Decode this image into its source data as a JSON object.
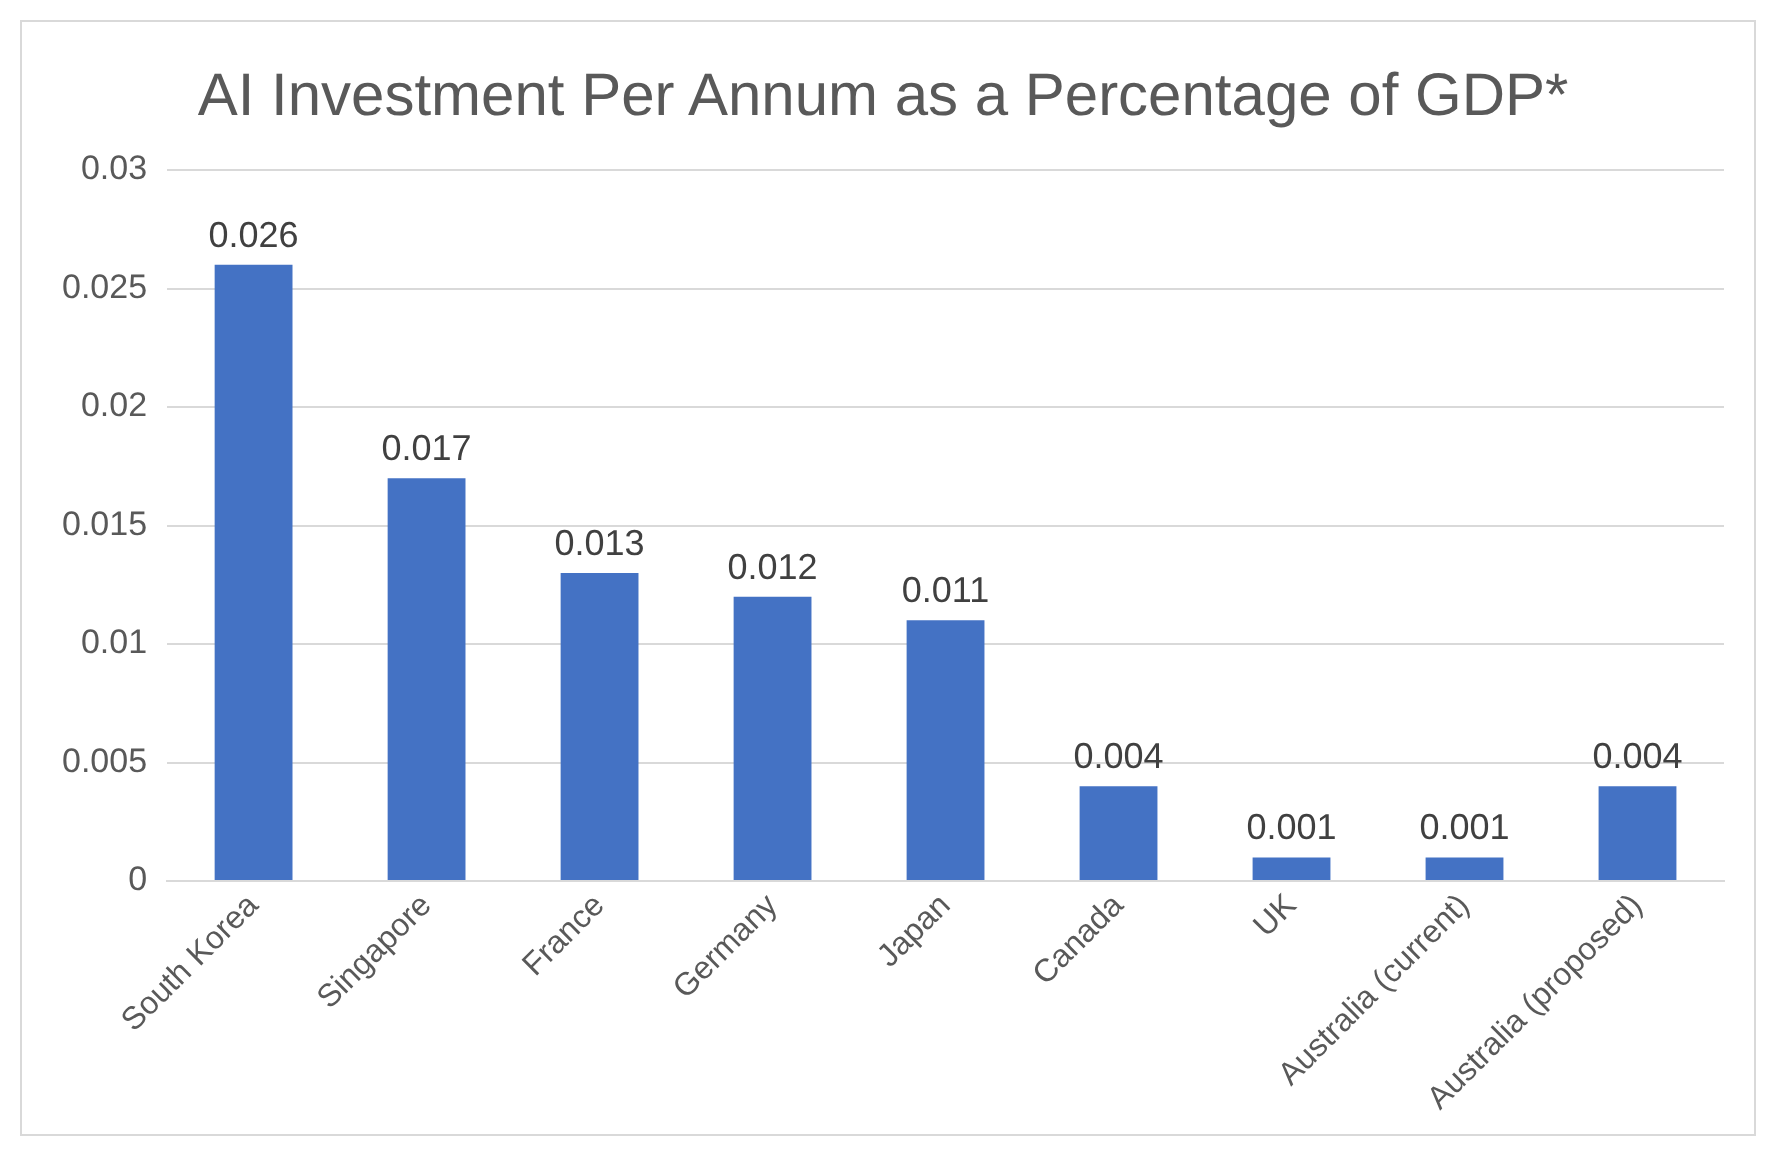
{
  "chart_data": {
    "type": "bar",
    "title": "AI Investment Per Annum as a Percentage of GDP*",
    "categories": [
      "South Korea",
      "Singapore",
      "France",
      "Germany",
      "Japan",
      "Canada",
      "UK",
      "Australia (current)",
      "Australia (proposed)"
    ],
    "values": [
      0.026,
      0.017,
      0.013,
      0.012,
      0.011,
      0.004,
      0.001,
      0.001,
      0.004
    ],
    "color": "#4472c4",
    "ylim": [
      0,
      0.03
    ],
    "yticks": [
      0,
      0.005,
      0.01,
      0.015,
      0.02,
      0.025,
      0.03
    ],
    "grid": "y",
    "data_labels": true,
    "legend": false
  }
}
